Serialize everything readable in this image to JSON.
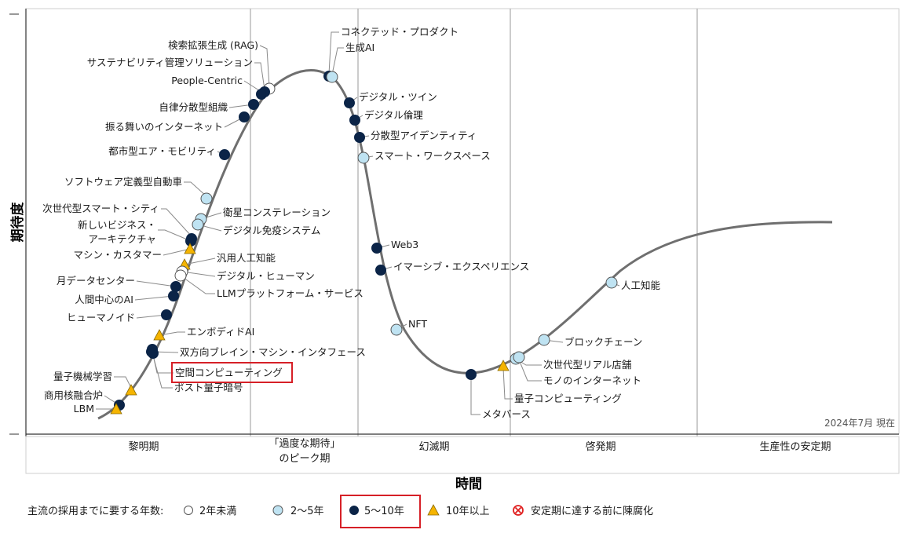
{
  "chart_data": {
    "type": "scatter",
    "title": "",
    "ylabel": "期待度",
    "xlabel": "時間",
    "as_of": "2024年7月 現在",
    "phases": [
      "黎明期",
      "「過度な期待」のピーク期",
      "幻滅期",
      "啓発期",
      "生産性の安定期"
    ],
    "phase_lines": [
      "「過度な期待」",
      "のピーク期"
    ],
    "legend": {
      "title": "主流の採用までに要する年数:",
      "items": [
        {
          "key": "lt2",
          "label": "2年未満"
        },
        {
          "key": "2to5",
          "label": "2〜5年"
        },
        {
          "key": "5to10",
          "label": "5〜10年"
        },
        {
          "key": "gt10",
          "label": "10年以上"
        },
        {
          "key": "obsolete",
          "label": "安定期に達する前に陳腐化"
        }
      ]
    },
    "colors": {
      "lt2": "#ffffff",
      "2to5": "#bfe3f2",
      "5to10": "#0b2447",
      "gt10": "#f5b400",
      "obsolete": "#e02020",
      "curve": "#6f6f6f",
      "highlight": "#d62027"
    },
    "highlighted": [
      "空間コンピューティング",
      "5〜10年"
    ],
    "technologies": [
      {
        "name": "検索拡張生成 (RAG)",
        "years": "lt2"
      },
      {
        "name": "サステナビリティ管理ソリューション",
        "years": "5to10"
      },
      {
        "name": "People-Centric",
        "years": "5to10"
      },
      {
        "name": "自律分散型組織",
        "years": "5to10"
      },
      {
        "name": "振る舞いのインターネット",
        "years": "5to10"
      },
      {
        "name": "都市型エア・モビリティ",
        "years": "5to10"
      },
      {
        "name": "ソフトウェア定義型自動車",
        "years": "2to5"
      },
      {
        "name": "次世代型スマート・シティ",
        "years": "5to10"
      },
      {
        "name": "新しいビジネス・アーキテクチャ",
        "years": "5to10"
      },
      {
        "name": "マシン・カスタマー",
        "years": "gt10"
      },
      {
        "name": "衛星コンステレーション",
        "years": "2to5"
      },
      {
        "name": "デジタル免疫システム",
        "years": "2to5"
      },
      {
        "name": "汎用人工知能",
        "years": "gt10"
      },
      {
        "name": "デジタル・ヒューマン",
        "years": "lt2"
      },
      {
        "name": "LLMプラットフォーム・サービス",
        "years": "lt2"
      },
      {
        "name": "月データセンター",
        "years": "5to10"
      },
      {
        "name": "人間中心のAI",
        "years": "5to10"
      },
      {
        "name": "ヒューマノイド",
        "years": "5to10"
      },
      {
        "name": "エンボディドAI",
        "years": "gt10"
      },
      {
        "name": "双方向ブレイン・マシン・インタフェース",
        "years": "5to10"
      },
      {
        "name": "空間コンピューティング",
        "years": "5to10"
      },
      {
        "name": "ポスト量子暗号",
        "years": "5to10"
      },
      {
        "name": "量子機械学習",
        "years": "gt10"
      },
      {
        "name": "商用核融合炉",
        "years": "5to10"
      },
      {
        "name": "LBM",
        "years": "gt10"
      },
      {
        "name": "コネクテッド・プロダクト",
        "years": "5to10"
      },
      {
        "name": "生成AI",
        "years": "2to5"
      },
      {
        "name": "デジタル・ツイン",
        "years": "5to10"
      },
      {
        "name": "デジタル倫理",
        "years": "5to10"
      },
      {
        "name": "分散型アイデンティティ",
        "years": "5to10"
      },
      {
        "name": "スマート・ワークスペース",
        "years": "2to5"
      },
      {
        "name": "Web3",
        "years": "5to10"
      },
      {
        "name": "イマーシブ・エクスペリエンス",
        "years": "5to10"
      },
      {
        "name": "NFT",
        "years": "2to5"
      },
      {
        "name": "メタバース",
        "years": "5to10"
      },
      {
        "name": "量子コンピューティング",
        "years": "gt10"
      },
      {
        "name": "次世代型リアル店舗",
        "years": "2to5"
      },
      {
        "name": "モノのインターネット",
        "years": "2to5"
      },
      {
        "name": "ブロックチェーン",
        "years": "2to5"
      },
      {
        "name": "人工知能",
        "years": "2to5"
      }
    ]
  }
}
